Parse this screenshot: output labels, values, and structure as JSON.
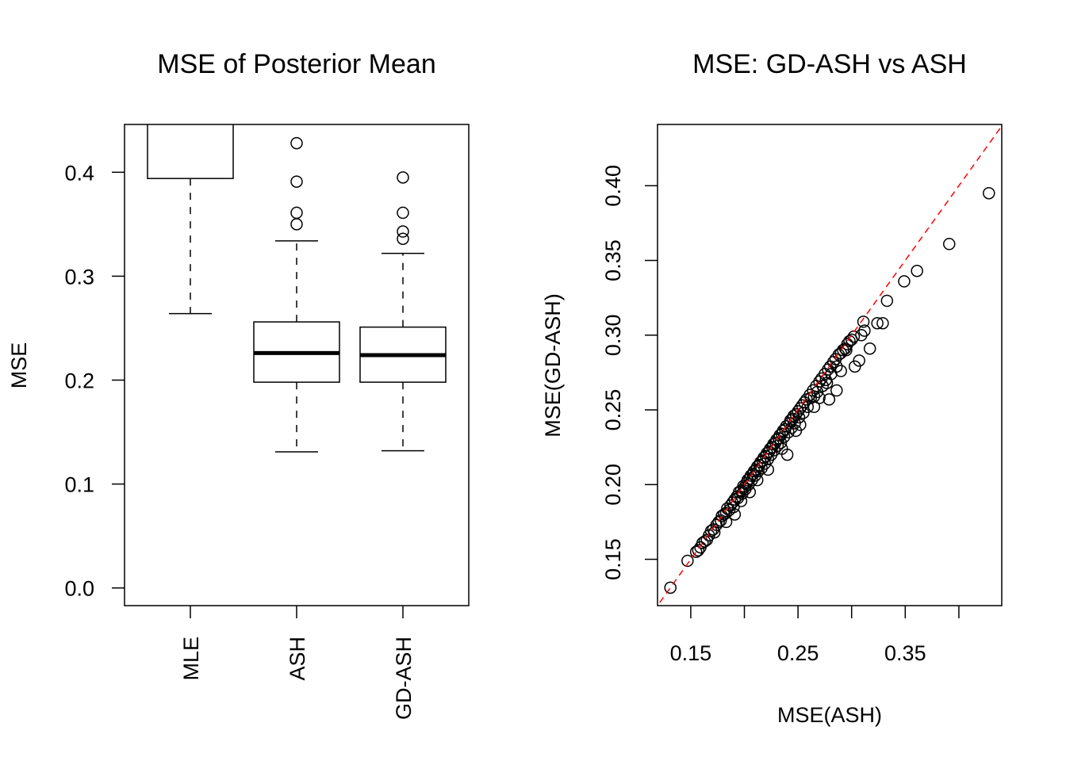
{
  "chart_data": [
    {
      "type": "box",
      "title": "MSE of Posterior Mean",
      "xlabel": "",
      "ylabel": "MSE",
      "ylim": [
        -0.017,
        0.446
      ],
      "yticks": [
        0.0,
        0.1,
        0.2,
        0.3,
        0.4
      ],
      "ytick_labels": [
        "0.0",
        "0.1",
        "0.2",
        "0.3",
        "0.4"
      ],
      "categories": [
        "MLE",
        "ASH",
        "GD-ASH"
      ],
      "boxes": [
        {
          "name": "MLE",
          "whisker_low": 0.264,
          "q1": 0.394,
          "median": null,
          "q3": null,
          "whisker_high": null,
          "outliers": []
        },
        {
          "name": "ASH",
          "whisker_low": 0.131,
          "q1": 0.198,
          "median": 0.226,
          "q3": 0.256,
          "whisker_high": 0.334,
          "outliers": [
            0.428,
            0.391,
            0.361,
            0.35
          ]
        },
        {
          "name": "GD-ASH",
          "whisker_low": 0.132,
          "q1": 0.198,
          "median": 0.224,
          "q3": 0.251,
          "whisker_high": 0.322,
          "outliers": [
            0.395,
            0.361,
            0.343,
            0.336
          ]
        }
      ]
    },
    {
      "type": "scatter",
      "title": "MSE: GD-ASH vs ASH",
      "xlabel": "MSE(ASH)",
      "ylabel": "MSE(GD-ASH)",
      "xlim": [
        0.119,
        0.44
      ],
      "ylim": [
        0.119,
        0.441
      ],
      "xticks": [
        0.15,
        0.2,
        0.25,
        0.3,
        0.35,
        0.4
      ],
      "xtick_labels": [
        "0.15",
        "",
        "0.25",
        "",
        "0.35",
        ""
      ],
      "yticks": [
        0.15,
        0.2,
        0.25,
        0.3,
        0.35,
        0.4
      ],
      "ytick_labels": [
        "0.15",
        "0.20",
        "0.25",
        "0.30",
        "0.35",
        "0.40"
      ],
      "reference_line": {
        "slope": 1,
        "intercept": 0,
        "color": "#ff0000",
        "style": "dashed"
      },
      "points": [
        [
          0.155,
          0.155
        ],
        [
          0.157,
          0.156
        ],
        [
          0.159,
          0.158
        ],
        [
          0.161,
          0.161
        ],
        [
          0.163,
          0.162
        ],
        [
          0.165,
          0.163
        ],
        [
          0.167,
          0.166
        ],
        [
          0.169,
          0.169
        ],
        [
          0.171,
          0.17
        ],
        [
          0.172,
          0.168
        ],
        [
          0.174,
          0.173
        ],
        [
          0.176,
          0.175
        ],
        [
          0.178,
          0.176
        ],
        [
          0.179,
          0.179
        ],
        [
          0.181,
          0.18
        ],
        [
          0.183,
          0.181
        ],
        [
          0.184,
          0.184
        ],
        [
          0.186,
          0.183
        ],
        [
          0.187,
          0.186
        ],
        [
          0.189,
          0.188
        ],
        [
          0.19,
          0.185
        ],
        [
          0.191,
          0.19
        ],
        [
          0.193,
          0.192
        ],
        [
          0.194,
          0.191
        ],
        [
          0.195,
          0.195
        ],
        [
          0.197,
          0.196
        ],
        [
          0.198,
          0.194
        ],
        [
          0.199,
          0.199
        ],
        [
          0.2,
          0.198
        ],
        [
          0.201,
          0.197
        ],
        [
          0.202,
          0.201
        ],
        [
          0.203,
          0.203
        ],
        [
          0.204,
          0.2
        ],
        [
          0.205,
          0.204
        ],
        [
          0.206,
          0.206
        ],
        [
          0.207,
          0.203
        ],
        [
          0.208,
          0.207
        ],
        [
          0.209,
          0.209
        ],
        [
          0.21,
          0.206
        ],
        [
          0.211,
          0.21
        ],
        [
          0.212,
          0.212
        ],
        [
          0.213,
          0.209
        ],
        [
          0.214,
          0.213
        ],
        [
          0.215,
          0.215
        ],
        [
          0.216,
          0.211
        ],
        [
          0.217,
          0.216
        ],
        [
          0.218,
          0.218
        ],
        [
          0.219,
          0.214
        ],
        [
          0.22,
          0.219
        ],
        [
          0.221,
          0.221
        ],
        [
          0.222,
          0.217
        ],
        [
          0.223,
          0.222
        ],
        [
          0.224,
          0.224
        ],
        [
          0.225,
          0.22
        ],
        [
          0.226,
          0.225
        ],
        [
          0.227,
          0.227
        ],
        [
          0.228,
          0.223
        ],
        [
          0.229,
          0.228
        ],
        [
          0.23,
          0.23
        ],
        [
          0.231,
          0.226
        ],
        [
          0.232,
          0.231
        ],
        [
          0.233,
          0.233
        ],
        [
          0.234,
          0.228
        ],
        [
          0.235,
          0.234
        ],
        [
          0.236,
          0.236
        ],
        [
          0.237,
          0.232
        ],
        [
          0.238,
          0.237
        ],
        [
          0.239,
          0.239
        ],
        [
          0.241,
          0.235
        ],
        [
          0.242,
          0.241
        ],
        [
          0.243,
          0.243
        ],
        [
          0.244,
          0.238
        ],
        [
          0.245,
          0.244
        ],
        [
          0.246,
          0.246
        ],
        [
          0.247,
          0.241
        ],
        [
          0.248,
          0.247
        ],
        [
          0.25,
          0.249
        ],
        [
          0.251,
          0.245
        ],
        [
          0.252,
          0.251
        ],
        [
          0.254,
          0.253
        ],
        [
          0.255,
          0.248
        ],
        [
          0.256,
          0.255
        ],
        [
          0.258,
          0.257
        ],
        [
          0.259,
          0.252
        ],
        [
          0.261,
          0.26
        ],
        [
          0.262,
          0.258
        ],
        [
          0.264,
          0.263
        ],
        [
          0.265,
          0.259
        ],
        [
          0.267,
          0.266
        ],
        [
          0.268,
          0.262
        ],
        [
          0.27,
          0.269
        ],
        [
          0.272,
          0.271
        ],
        [
          0.273,
          0.266
        ],
        [
          0.275,
          0.274
        ],
        [
          0.276,
          0.27
        ],
        [
          0.278,
          0.277
        ],
        [
          0.28,
          0.279
        ],
        [
          0.281,
          0.274
        ],
        [
          0.283,
          0.282
        ],
        [
          0.285,
          0.284
        ],
        [
          0.286,
          0.279
        ],
        [
          0.288,
          0.287
        ],
        [
          0.29,
          0.288
        ],
        [
          0.292,
          0.29
        ],
        [
          0.294,
          0.291
        ],
        [
          0.296,
          0.294
        ],
        [
          0.298,
          0.296
        ],
        [
          0.3,
          0.297
        ],
        [
          0.302,
          0.299
        ],
        [
          0.131,
          0.131
        ],
        [
          0.147,
          0.149
        ],
        [
          0.428,
          0.395
        ],
        [
          0.391,
          0.361
        ],
        [
          0.361,
          0.343
        ],
        [
          0.349,
          0.336
        ],
        [
          0.333,
          0.323
        ],
        [
          0.324,
          0.308
        ],
        [
          0.329,
          0.308
        ],
        [
          0.311,
          0.309
        ],
        [
          0.317,
          0.291
        ],
        [
          0.303,
          0.279
        ],
        [
          0.307,
          0.283
        ],
        [
          0.279,
          0.257
        ],
        [
          0.286,
          0.263
        ],
        [
          0.24,
          0.22
        ],
        [
          0.191,
          0.18
        ],
        [
          0.197,
          0.189
        ],
        [
          0.235,
          0.224
        ],
        [
          0.248,
          0.236
        ],
        [
          0.252,
          0.24
        ],
        [
          0.265,
          0.252
        ],
        [
          0.27,
          0.258
        ],
        [
          0.277,
          0.268
        ],
        [
          0.29,
          0.276
        ],
        [
          0.295,
          0.29
        ],
        [
          0.309,
          0.3
        ],
        [
          0.312,
          0.303
        ],
        [
          0.222,
          0.21
        ],
        [
          0.212,
          0.203
        ],
        [
          0.205,
          0.195
        ],
        [
          0.183,
          0.175
        ]
      ]
    }
  ]
}
